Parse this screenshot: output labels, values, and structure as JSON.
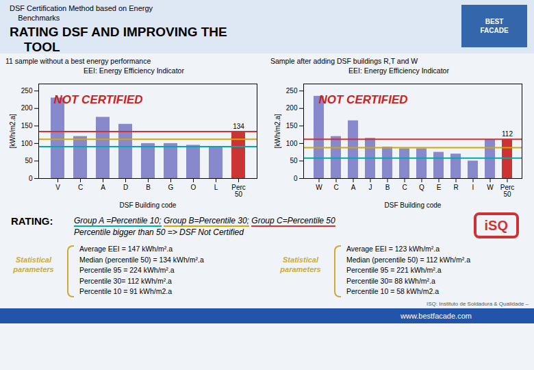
{
  "title": "RATING DSF AND IMPROVING THE\n    TOOL",
  "subtitle": "DSF Certification Method based on Energy\n    Benchmarks",
  "logo": {
    "text": "BEST\nFACADE",
    "color": "#3366aa"
  },
  "badge": {
    "text": "iSQ",
    "color": "#cc3333"
  },
  "rating_label": "RATING:",
  "rating_lines": [
    {
      "text": "Group A =Percentile 10; Group B=Percentile 30; Group C=Percentile 50",
      "colors": [
        "#00aaaa",
        "#ccaa00",
        "#cc3333"
      ]
    },
    {
      "text": "Percentile bigger than 50 => DSF Not Certified"
    }
  ],
  "note": "ISQ: Instituto de Soldadura & Qualidade –",
  "footer": {
    "text": "www.bestfacade.com",
    "color": "#2255aa"
  },
  "chart_data": [
    {
      "type": "bar",
      "subtitle": "11 sample without a best energy performance",
      "title": "EEI: Energy Efficiency Indicator",
      "xlabel": "DSF Building code",
      "ylabel": "[kWh/m2.a]",
      "categories": [
        "V",
        "C",
        "A",
        "D",
        "B",
        "G",
        "O",
        "L",
        "Perc\n50"
      ],
      "values": [
        230,
        120,
        175,
        155,
        100,
        100,
        95,
        90,
        134
      ],
      "colors": [
        "#8888cc",
        "#8888cc",
        "#8888cc",
        "#8888cc",
        "#8888cc",
        "#8888cc",
        "#8888cc",
        "#8888cc",
        "#cc3333"
      ],
      "value_labels": [
        null,
        null,
        null,
        null,
        null,
        null,
        null,
        null,
        "134"
      ],
      "ylim": [
        0,
        270
      ],
      "yticks": [
        0,
        50,
        100,
        150,
        200,
        250
      ],
      "hlines": [
        {
          "value": 134,
          "color": "#cc3333"
        },
        {
          "value": 112,
          "color": "#ccaa00"
        },
        {
          "value": 91,
          "color": "#00aaaa"
        }
      ],
      "stamp": {
        "text": "NOT CERTIFIED",
        "color": "#cc2222"
      },
      "stats_label": {
        "text": "Statistical\nparameters",
        "color": "#ccaa33"
      },
      "stats": [
        "Average EEI = 147 kWh/m².a",
        "Median (percentile 50) = 134 kWh/m².a",
        "Percentile 95 = 224 kWh/m².a",
        "Percentile 30= 112 kWh/m².a",
        "Percentile 10 = 91 kWh/m2.a"
      ]
    },
    {
      "type": "bar",
      "subtitle": "Sample after adding DSF buildings R,T and W",
      "title": "EEI: Energy Efficiency Indicator",
      "xlabel": "DSF Building code",
      "ylabel": "[kWh/m2.a]",
      "categories": [
        "W",
        "C",
        "A",
        "J",
        "B",
        "C",
        "Q",
        "E",
        "R",
        "I",
        "W",
        "Perc\n50"
      ],
      "values": [
        235,
        120,
        165,
        115,
        90,
        85,
        85,
        75,
        70,
        50,
        110,
        112
      ],
      "colors": [
        "#8888cc",
        "#8888cc",
        "#8888cc",
        "#8888cc",
        "#8888cc",
        "#8888cc",
        "#8888cc",
        "#8888cc",
        "#8888cc",
        "#8888cc",
        "#8888cc",
        "#cc3333"
      ],
      "value_labels": [
        null,
        null,
        null,
        null,
        null,
        null,
        null,
        null,
        null,
        null,
        null,
        "112"
      ],
      "ylim": [
        0,
        270
      ],
      "yticks": [
        0,
        50,
        100,
        150,
        200,
        250
      ],
      "hlines": [
        {
          "value": 112,
          "color": "#cc3333"
        },
        {
          "value": 88,
          "color": "#ccaa00"
        },
        {
          "value": 58,
          "color": "#00aaaa"
        }
      ],
      "stamp": {
        "text": "NOT CERTIFIED",
        "color": "#cc2222"
      },
      "stats_label": {
        "text": "Statistical\nparameters",
        "color": "#ccaa33"
      },
      "stats": [
        "Average EEI = 123 kWh/m².a",
        "Median (percentile 50) = 112 kWh/m².a",
        "Percentile 95 = 221 kWh/m².a",
        "Percentile 30= 88 kWh/m².a",
        "Percentile 10 = 58 kWh/m2.a"
      ]
    }
  ]
}
